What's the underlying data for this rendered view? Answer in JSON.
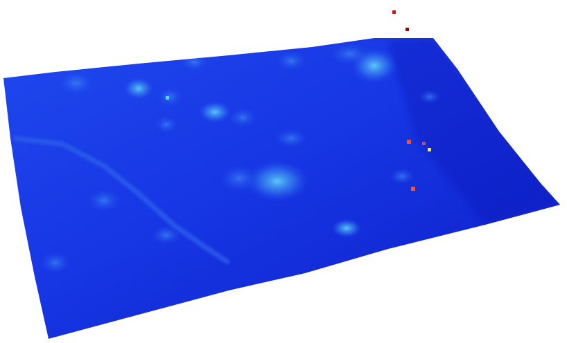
{
  "view": {
    "background": "#ffffff",
    "render": "3d-point-cloud-terrain-surface"
  },
  "colormap": {
    "name": "jet",
    "low": "#0a1fd8",
    "mid_low": "#1f4cf0",
    "mid": "#3fb8f5",
    "high_yellow": "#f5e84a",
    "high_orange": "#f2552a",
    "high_red": "#d41414",
    "highest_dark_red": "#8a0a0a"
  },
  "terrain": {
    "base_color": "#1531e0",
    "shadow_color": "#0a18b4",
    "highlight_color": "#4fc2f7",
    "road_color": "#2a5ae8"
  },
  "outlier_points": [
    {
      "name": "outlier-point-red-top",
      "color": "#d41414"
    },
    {
      "name": "outlier-point-darkred-top",
      "color": "#8a0a0a"
    },
    {
      "name": "outlier-point-orange-1",
      "color": "#f2552a"
    },
    {
      "name": "outlier-point-orange-2",
      "color": "#e8462a"
    },
    {
      "name": "outlier-point-yellow",
      "color": "#f5e84a"
    },
    {
      "name": "outlier-point-orange-3",
      "color": "#f2552a"
    },
    {
      "name": "outlier-point-cyan",
      "color": "#3fe6f0"
    }
  ]
}
